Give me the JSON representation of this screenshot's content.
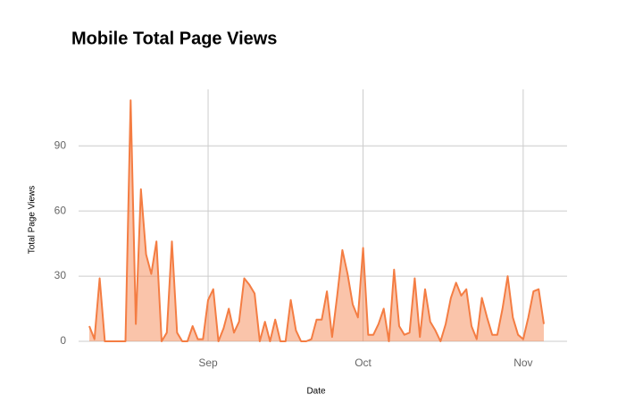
{
  "chart_data": {
    "type": "area",
    "title": "Mobile Total Page Views",
    "x_label": "Date",
    "y_label": "Total Page Views",
    "categories": [
      null,
      null,
      null,
      null,
      null,
      null,
      null,
      null,
      null,
      null,
      null,
      null,
      null,
      null,
      null,
      null,
      null,
      null,
      null,
      null,
      null,
      null,
      null,
      "Sep",
      null,
      null,
      null,
      null,
      null,
      null,
      null,
      null,
      null,
      null,
      null,
      null,
      null,
      null,
      null,
      null,
      null,
      null,
      null,
      null,
      null,
      null,
      null,
      null,
      null,
      null,
      null,
      null,
      null,
      "Oct",
      null,
      null,
      null,
      null,
      null,
      null,
      null,
      null,
      null,
      null,
      null,
      null,
      null,
      null,
      null,
      null,
      null,
      null,
      null,
      null,
      null,
      null,
      null,
      null,
      null,
      null,
      null,
      null,
      null,
      null,
      "Nov",
      null,
      null,
      null,
      null
    ],
    "values": [
      7,
      1,
      29,
      0,
      0,
      0,
      0,
      0,
      111,
      8,
      70,
      40,
      31,
      46,
      0,
      4,
      46,
      4,
      0,
      0,
      7,
      1,
      1,
      19,
      24,
      0,
      6,
      15,
      4,
      9,
      29,
      26,
      22,
      0,
      9,
      0,
      10,
      0,
      0,
      19,
      5,
      0,
      0,
      1,
      10,
      10,
      23,
      2,
      21,
      42,
      31,
      17,
      11,
      43,
      3,
      3,
      8,
      15,
      0,
      33,
      7,
      3,
      4,
      29,
      2,
      24,
      9,
      5,
      0,
      8,
      20,
      27,
      21,
      24,
      7,
      1,
      20,
      11,
      3,
      3,
      15,
      30,
      11,
      3,
      1,
      11,
      23,
      24,
      8
    ],
    "color": "#f47d43",
    "ylim": [
      0,
      116
    ],
    "yticks": [
      0,
      30,
      60,
      90
    ],
    "grid": true
  }
}
